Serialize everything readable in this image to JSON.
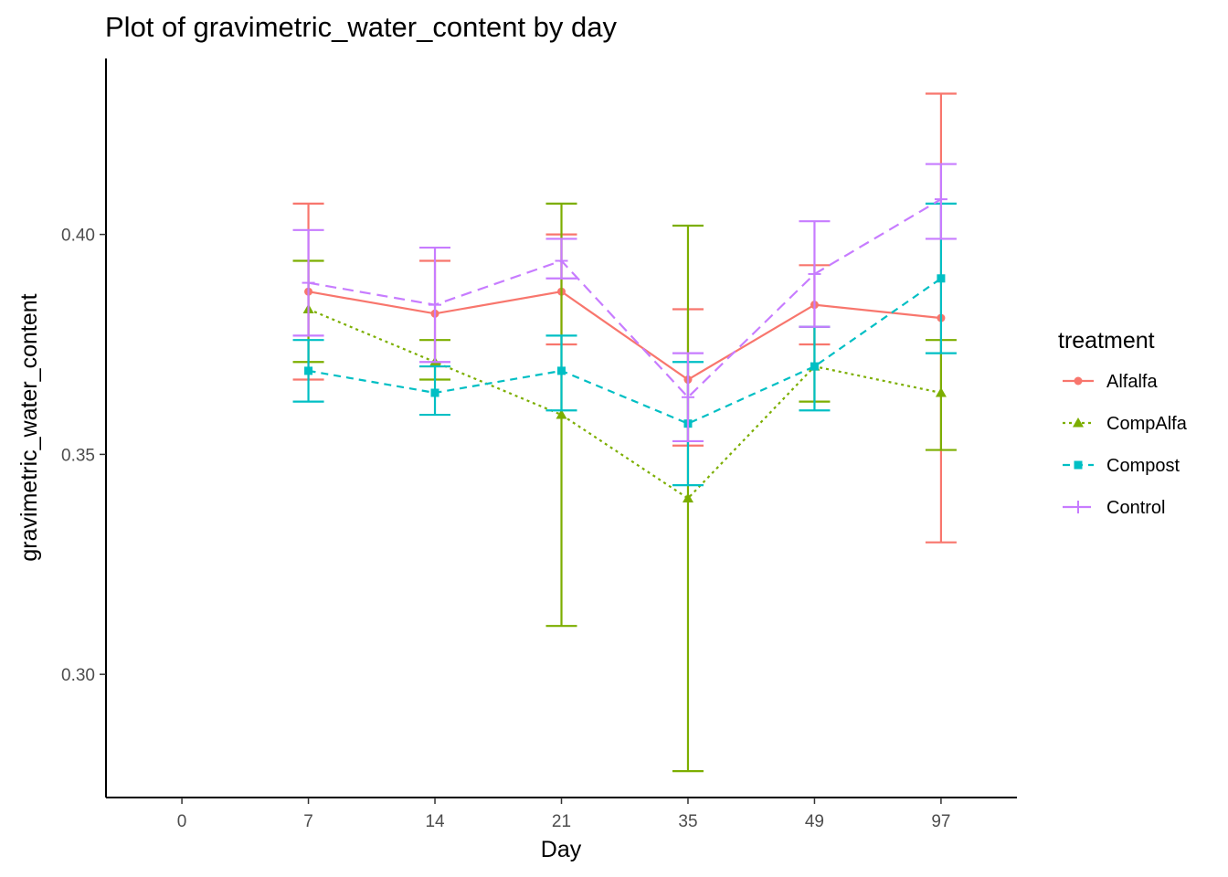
{
  "chart_data": {
    "type": "line",
    "title": "Plot of gravimetric_water_content by day",
    "xlabel": "Day",
    "ylabel": "gravimetric_water_content",
    "categories": [
      "0",
      "7",
      "14",
      "21",
      "35",
      "49",
      "97"
    ],
    "yticks": [
      0.3,
      0.35,
      0.4
    ],
    "ytick_labels": [
      "0.30",
      "0.35",
      "0.40"
    ],
    "ylim": [
      0.272,
      0.44
    ],
    "grid": false,
    "legend": {
      "title": "treatment",
      "position": "right"
    },
    "series": [
      {
        "name": "Alfalfa",
        "color": "#F8766D",
        "line": "solid",
        "marker": "circle",
        "x": [
          "7",
          "14",
          "21",
          "35",
          "49",
          "97"
        ],
        "values": [
          0.387,
          0.382,
          0.387,
          0.367,
          0.384,
          0.381
        ],
        "err_low": [
          0.367,
          0.37,
          0.375,
          0.352,
          0.375,
          0.33
        ],
        "err_high": [
          0.407,
          0.394,
          0.4,
          0.383,
          0.393,
          0.432
        ]
      },
      {
        "name": "CompAlfa",
        "color": "#7CAE00",
        "line": "dotted",
        "marker": "triangle",
        "x": [
          "7",
          "14",
          "21",
          "35",
          "49",
          "97"
        ],
        "values": [
          0.383,
          0.371,
          0.359,
          0.34,
          0.37,
          0.364
        ],
        "err_low": [
          0.371,
          0.367,
          0.311,
          0.278,
          0.362,
          0.351
        ],
        "err_high": [
          0.394,
          0.376,
          0.407,
          0.402,
          0.379,
          0.376
        ]
      },
      {
        "name": "Compost",
        "color": "#00BFC4",
        "line": "dashed",
        "marker": "square",
        "x": [
          "7",
          "14",
          "21",
          "35",
          "49",
          "97"
        ],
        "values": [
          0.369,
          0.364,
          0.369,
          0.357,
          0.37,
          0.39
        ],
        "err_low": [
          0.362,
          0.359,
          0.36,
          0.343,
          0.36,
          0.373
        ],
        "err_high": [
          0.376,
          0.37,
          0.377,
          0.371,
          0.379,
          0.407
        ]
      },
      {
        "name": "Control",
        "color": "#C77CFF",
        "line": "longdash",
        "marker": "plus",
        "x": [
          "7",
          "14",
          "21",
          "35",
          "49",
          "97"
        ],
        "values": [
          0.389,
          0.384,
          0.394,
          0.363,
          0.391,
          0.408
        ],
        "err_low": [
          0.377,
          0.371,
          0.39,
          0.353,
          0.379,
          0.399
        ],
        "err_high": [
          0.401,
          0.397,
          0.399,
          0.373,
          0.403,
          0.416
        ]
      }
    ]
  }
}
